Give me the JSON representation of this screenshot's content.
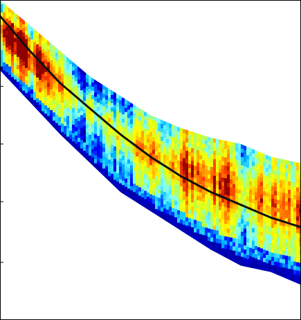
{
  "chart_data": {
    "type": "heatmap",
    "title": "",
    "xlabel": "",
    "ylabel": "",
    "colormap": "jet",
    "colormap_stops": [
      "#00008f",
      "#0000ff",
      "#00bfff",
      "#7fffff",
      "#bfff3f",
      "#ffff00",
      "#ff9f00",
      "#ff3f00",
      "#8f0000"
    ],
    "xlim": [
      0,
      1
    ],
    "ylim": [
      0,
      1
    ],
    "grid": false,
    "band_top": {
      "x": [
        0.0,
        0.1,
        0.2,
        0.3,
        0.4,
        0.5,
        0.6,
        0.7,
        0.8,
        0.9,
        1.0
      ],
      "y": [
        1.0,
        0.92,
        0.84,
        0.76,
        0.7,
        0.64,
        0.6,
        0.57,
        0.55,
        0.51,
        0.49
      ]
    },
    "band_bottom": {
      "x": [
        0.0,
        0.1,
        0.2,
        0.3,
        0.4,
        0.5,
        0.6,
        0.7,
        0.8,
        0.9,
        1.0
      ],
      "y": [
        0.78,
        0.68,
        0.58,
        0.49,
        0.4,
        0.34,
        0.28,
        0.22,
        0.17,
        0.15,
        0.11
      ]
    },
    "fit_line": {
      "color": "#111111",
      "x": [
        0.0,
        0.1,
        0.2,
        0.3,
        0.4,
        0.5,
        0.6,
        0.7,
        0.8,
        0.9,
        1.0
      ],
      "y": [
        0.95,
        0.84,
        0.74,
        0.66,
        0.58,
        0.51,
        0.45,
        0.4,
        0.36,
        0.32,
        0.29
      ]
    },
    "yticks": [
      0.18,
      0.37,
      0.55,
      0.73
    ]
  }
}
